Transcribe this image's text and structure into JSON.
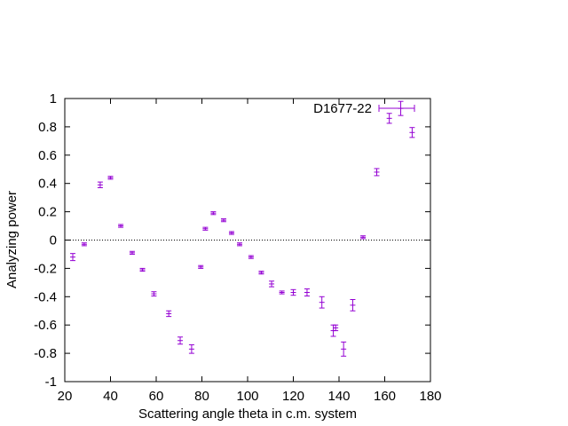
{
  "chart_data": {
    "type": "scatter",
    "title": "",
    "xlabel": "Scattering angle theta in c.m. system",
    "ylabel": "Analyzing power",
    "xlim": [
      20,
      180
    ],
    "ylim": [
      -1,
      1
    ],
    "xticks": [
      "20",
      "40",
      "60",
      "80",
      "100",
      "120",
      "140",
      "160",
      "180"
    ],
    "yticks": [
      "-1",
      "-0.8",
      "-0.6",
      "-0.4",
      "-0.2",
      "0",
      "0.2",
      "0.4",
      "0.6",
      "0.8",
      "1"
    ],
    "xtick_values": [
      20,
      40,
      60,
      80,
      100,
      120,
      140,
      160,
      180
    ],
    "ytick_values": [
      -1,
      -0.8,
      -0.6,
      -0.4,
      -0.2,
      0,
      0.2,
      0.4,
      0.6,
      0.8,
      1
    ],
    "reference_line": {
      "y": 0,
      "style": "dotted"
    },
    "grid": false,
    "legend_position": "top-right",
    "series": [
      {
        "name": "D1677-22",
        "color": "#9400d3",
        "marker": "plus-with-error-bars",
        "points": [
          {
            "x": 23.5,
            "y": -0.12,
            "yerr": 0.025
          },
          {
            "x": 28.5,
            "y": -0.03,
            "yerr": 0.01
          },
          {
            "x": 35.5,
            "y": 0.39,
            "yerr": 0.02
          },
          {
            "x": 40,
            "y": 0.44,
            "yerr": 0.01
          },
          {
            "x": 44.5,
            "y": 0.1,
            "yerr": 0.01
          },
          {
            "x": 49.5,
            "y": -0.09,
            "yerr": 0.01
          },
          {
            "x": 54,
            "y": -0.21,
            "yerr": 0.01
          },
          {
            "x": 59,
            "y": -0.38,
            "yerr": 0.015
          },
          {
            "x": 65.5,
            "y": -0.52,
            "yerr": 0.02
          },
          {
            "x": 70.5,
            "y": -0.71,
            "yerr": 0.025
          },
          {
            "x": 75.5,
            "y": -0.77,
            "yerr": 0.03
          },
          {
            "x": 79.5,
            "y": -0.19,
            "yerr": 0.01
          },
          {
            "x": 81.5,
            "y": 0.08,
            "yerr": 0.01
          },
          {
            "x": 85,
            "y": 0.19,
            "yerr": 0.01
          },
          {
            "x": 89.5,
            "y": 0.14,
            "yerr": 0.01
          },
          {
            "x": 93,
            "y": 0.05,
            "yerr": 0.01
          },
          {
            "x": 96.5,
            "y": -0.03,
            "yerr": 0.01
          },
          {
            "x": 101.5,
            "y": -0.12,
            "yerr": 0.01
          },
          {
            "x": 106,
            "y": -0.23,
            "yerr": 0.01
          },
          {
            "x": 110.5,
            "y": -0.31,
            "yerr": 0.02
          },
          {
            "x": 115,
            "y": -0.37,
            "yerr": 0.01
          },
          {
            "x": 120,
            "y": -0.37,
            "yerr": 0.02
          },
          {
            "x": 126,
            "y": -0.37,
            "yerr": 0.025
          },
          {
            "x": 132.5,
            "y": -0.44,
            "yerr": 0.04
          },
          {
            "x": 137.5,
            "y": -0.64,
            "yerr": 0.04
          },
          {
            "x": 138.5,
            "y": -0.62,
            "yerr": 0.02
          },
          {
            "x": 142,
            "y": -0.77,
            "yerr": 0.05
          },
          {
            "x": 146,
            "y": -0.46,
            "yerr": 0.04
          },
          {
            "x": 150.5,
            "y": 0.02,
            "yerr": 0.01
          },
          {
            "x": 156.5,
            "y": 0.48,
            "yerr": 0.025
          },
          {
            "x": 162,
            "y": 0.86,
            "yerr": 0.035
          },
          {
            "x": 167,
            "y": 0.93,
            "yerr": 0.05
          },
          {
            "x": 172,
            "y": 0.76,
            "yerr": 0.035
          }
        ]
      }
    ]
  }
}
